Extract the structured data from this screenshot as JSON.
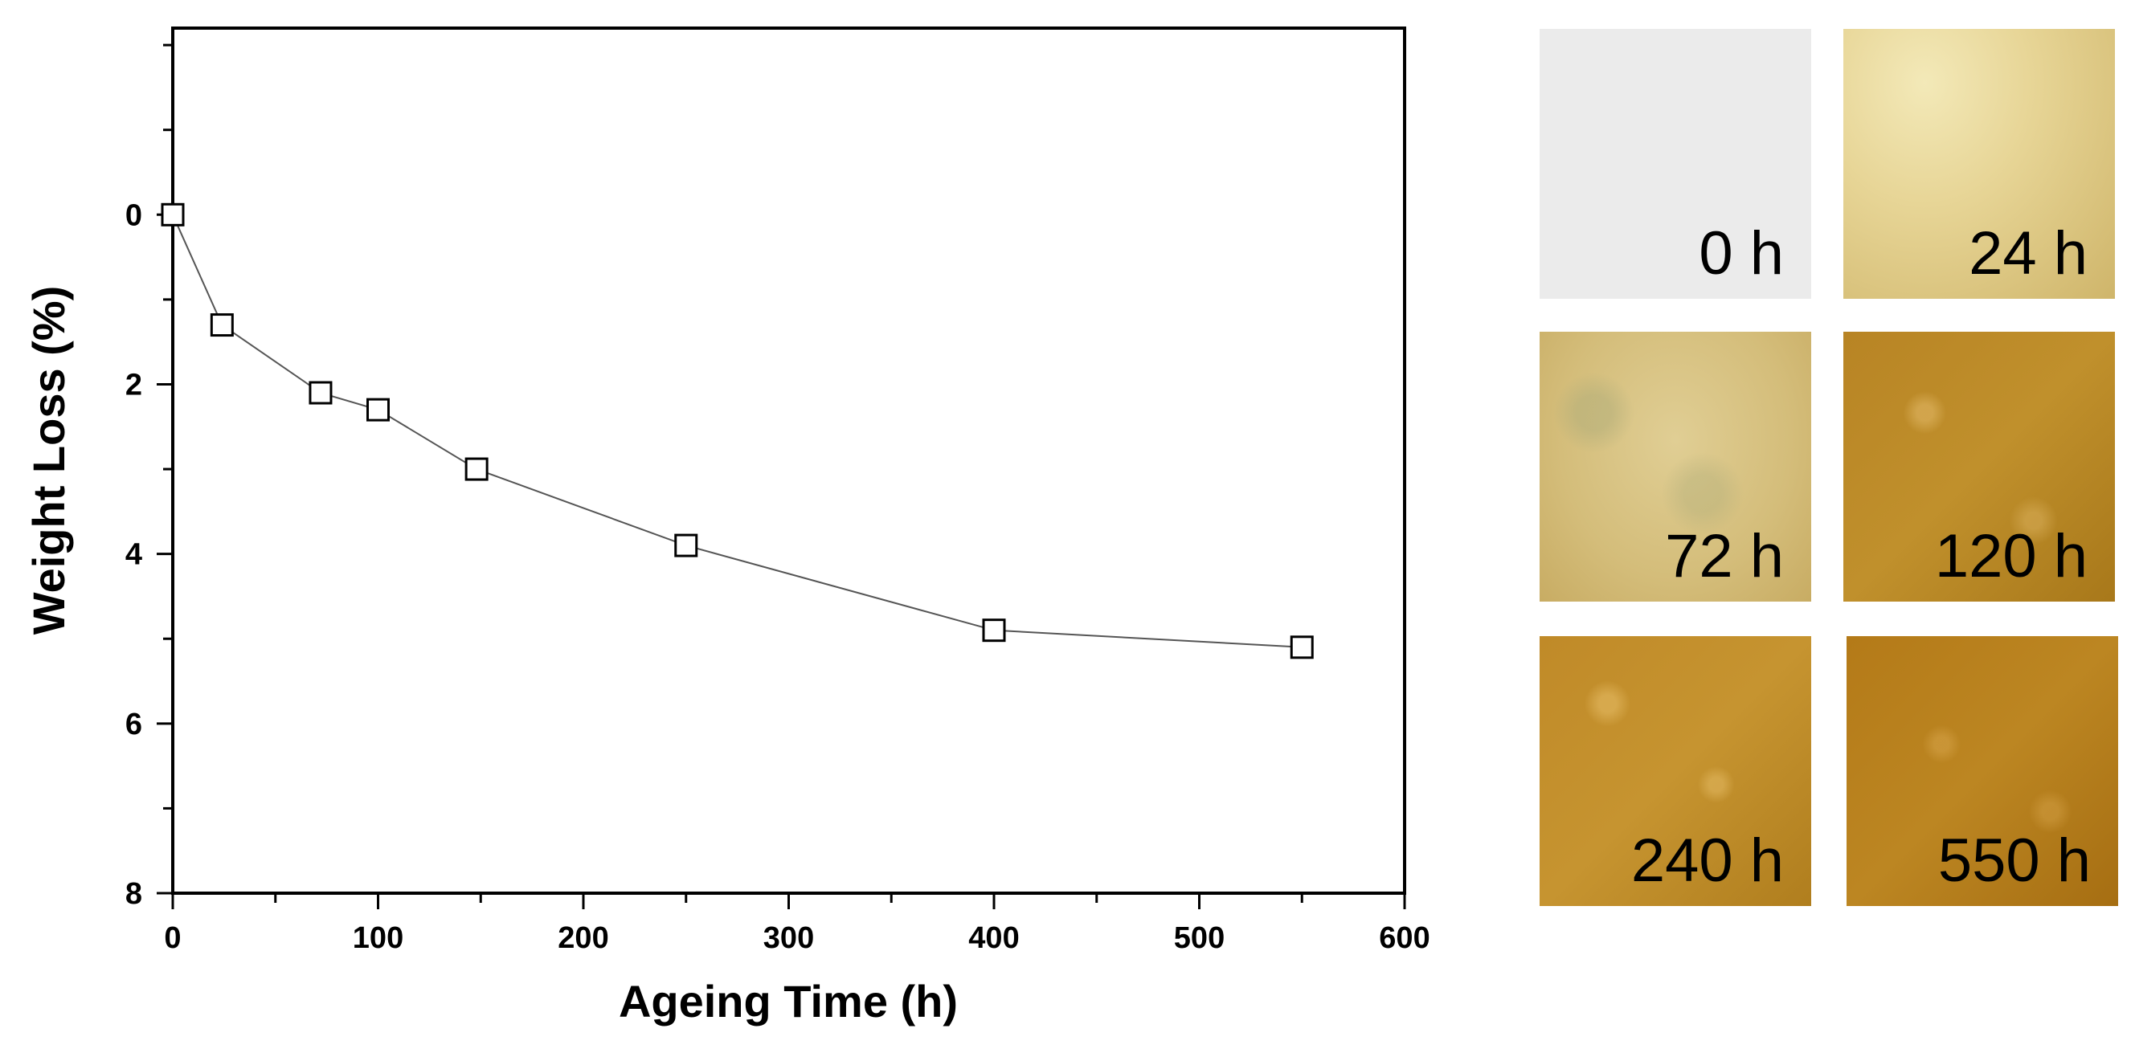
{
  "chart_data": {
    "type": "line",
    "title": "",
    "xlabel": "Ageing Time (h)",
    "ylabel": "Weight Loss (%)",
    "xlim": [
      0,
      600
    ],
    "ylim": [
      -2.2,
      8
    ],
    "y_inverted": true,
    "x_ticks": [
      0,
      100,
      200,
      300,
      400,
      500,
      600
    ],
    "x_minor_step": 50,
    "y_ticks": [
      0,
      2,
      4,
      6,
      8
    ],
    "y_minor_step": 1,
    "grid": false,
    "marker": "open-square",
    "series": [
      {
        "name": "Weight Loss",
        "x": [
          0,
          24,
          72,
          100,
          148,
          250,
          400,
          550
        ],
        "y": [
          0,
          1.3,
          2.1,
          2.3,
          3.0,
          3.9,
          4.9,
          5.1
        ]
      }
    ]
  },
  "samples": [
    {
      "label": "0 h",
      "color": "#ebebeb"
    },
    {
      "label": "24 h",
      "color": "#e3cf8c"
    },
    {
      "label": "72 h",
      "color": "#d6bf7c"
    },
    {
      "label": "120 h",
      "color": "#b88424"
    },
    {
      "label": "240 h",
      "color": "#c08a28"
    },
    {
      "label": "550 h",
      "color": "#b47a18"
    }
  ]
}
